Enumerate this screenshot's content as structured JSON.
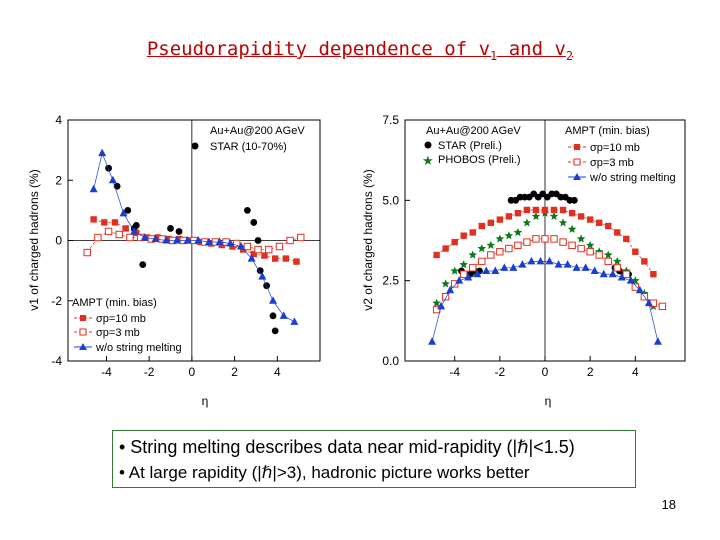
{
  "slide": {
    "title_main": "Pseudorapidity dependence of v",
    "title_sub1": "1",
    "title_and": " and v",
    "title_sub2": "2",
    "bullet1": "• String melting describes data near mid-rapidity (|ℏ|<1.5)",
    "bullet2": "• At large rapidity (|ℏ|>3), hadronic picture works better",
    "page_number": "18"
  },
  "colors": {
    "star": "#000000",
    "sigma10": "#e03020",
    "sigma3": "#e03020",
    "nosm": "#1a3fd0",
    "phobos": "#0a7a1a",
    "title": "#c00000"
  },
  "chart_data": [
    {
      "type": "scatter",
      "id": "v1",
      "xlabel": "η",
      "ylabel": "v1 of charged hadrons (%)",
      "xlim": [
        -5.8,
        6.0
      ],
      "ylim": [
        -4,
        4
      ],
      "xticks": [
        -4,
        -2,
        0,
        2,
        4
      ],
      "yticks": [
        -4,
        -2,
        0,
        2,
        4
      ],
      "ytick_labels": [
        "-4",
        "-2",
        "0",
        "2",
        "4"
      ],
      "legend_top": {
        "system": "Au+Au@200 AGeV",
        "star": "STAR (10-70%)"
      },
      "legend_bottom": {
        "title": "AMPT (min. bias)",
        "s10": "σp=10 mb",
        "s3": "σp=3   mb",
        "nosm": "w/o string melting"
      },
      "series": [
        {
          "name": "STAR (10-70%)",
          "marker": "circle-filled",
          "color": "#000000",
          "x": [
            -3.9,
            -3.5,
            -3.0,
            -2.7,
            -2.6,
            -2.3,
            -1.0,
            -0.85,
            -0.6,
            -0.3,
            2.6,
            2.9,
            3.1,
            3.2,
            3.5,
            3.8,
            3.9
          ],
          "y": [
            2.4,
            1.8,
            1.0,
            0.4,
            0.5,
            -0.8,
            0.4,
            0.0,
            0.3,
            0.0,
            1.0,
            0.6,
            0.0,
            -1.0,
            -1.5,
            -2.5,
            -3.0
          ]
        },
        {
          "name": "σp=10 mb",
          "marker": "square-filled",
          "color": "#e03020",
          "x": [
            -4.6,
            -4.1,
            -3.6,
            -3.1,
            -2.6,
            -2.1,
            -1.6,
            -1.1,
            -0.6,
            -0.1,
            0.4,
            0.9,
            1.4,
            1.9,
            2.4,
            2.9,
            3.4,
            3.9,
            4.4,
            4.9
          ],
          "y": [
            0.7,
            0.6,
            0.6,
            0.4,
            0.25,
            0.1,
            0.1,
            0.05,
            0.05,
            0.0,
            -0.05,
            -0.1,
            -0.15,
            -0.2,
            -0.3,
            -0.45,
            -0.5,
            -0.6,
            -0.6,
            -0.7
          ]
        },
        {
          "name": "σp=3 mb",
          "marker": "square-open",
          "color": "#e03020",
          "x": [
            -4.9,
            -4.4,
            -3.9,
            -3.4,
            -2.9,
            -2.4,
            -1.9,
            -1.4,
            -0.9,
            -0.4,
            0.1,
            0.6,
            1.1,
            1.6,
            2.1,
            2.6,
            3.1,
            3.6,
            4.1,
            4.6,
            5.1
          ],
          "y": [
            -0.4,
            0.1,
            0.3,
            0.2,
            0.1,
            0.1,
            0.05,
            0.05,
            0.0,
            0.0,
            0.0,
            -0.05,
            -0.05,
            -0.05,
            -0.1,
            -0.2,
            -0.3,
            -0.3,
            -0.2,
            0.0,
            0.1
          ]
        },
        {
          "name": "w/o string melting",
          "marker": "triangle-filled",
          "color": "#1a3fd0",
          "x": [
            -4.6,
            -4.2,
            -3.7,
            -3.2,
            -2.7,
            -2.2,
            -1.7,
            -1.2,
            -0.7,
            -0.2,
            0.3,
            0.8,
            1.3,
            1.8,
            2.3,
            2.8,
            3.3,
            3.8,
            4.3,
            4.8
          ],
          "y": [
            1.7,
            2.9,
            2.0,
            0.9,
            0.3,
            0.1,
            0.05,
            0.0,
            0.0,
            0.0,
            0.0,
            -0.05,
            -0.05,
            -0.1,
            -0.2,
            -0.6,
            -1.2,
            -2.0,
            -2.5,
            -2.7
          ]
        }
      ]
    },
    {
      "type": "scatter",
      "id": "v2",
      "xlabel": "η",
      "ylabel": "v2 of charged hadrons (%)",
      "xlim": [
        -6.2,
        6.2
      ],
      "ylim": [
        0,
        7.5
      ],
      "xticks": [
        -4,
        -2,
        0,
        2,
        4
      ],
      "yticks": [
        0,
        2.5,
        5.0,
        7.5
      ],
      "ytick_labels": [
        "0.0",
        "2.5",
        "5.0",
        "7.5"
      ],
      "legend_data": {
        "system": "Au+Au@200 AGeV",
        "star": "STAR (Preli.)",
        "phobos": "PHOBOS (Preli.)"
      },
      "legend_ampt": {
        "title": "AMPT (min. bias)",
        "s10": "σp=10 mb",
        "s3": "σp=3   mb",
        "nosm": "w/o string melting"
      },
      "series": [
        {
          "name": "STAR (Preli.)",
          "marker": "circle-filled",
          "color": "#000000",
          "x": [
            -3.7,
            -3.5,
            -3.3,
            -3.1,
            -2.9,
            -1.5,
            -1.3,
            -1.1,
            -0.9,
            -0.7,
            -0.5,
            -0.3,
            -0.1,
            0.1,
            0.3,
            0.5,
            0.7,
            0.9,
            1.1,
            1.3,
            3.1,
            3.3,
            3.5,
            3.7
          ],
          "y": [
            2.8,
            2.7,
            2.7,
            2.8,
            2.8,
            5.0,
            5.0,
            5.1,
            5.1,
            5.1,
            5.2,
            5.1,
            5.2,
            5.1,
            5.2,
            5.2,
            5.1,
            5.1,
            5.0,
            5.0,
            2.9,
            2.8,
            2.7,
            2.7
          ]
        },
        {
          "name": "PHOBOS (Preli.)",
          "marker": "star",
          "color": "#0a7a1a",
          "x": [
            -4.8,
            -4.4,
            -4.0,
            -3.6,
            -3.2,
            -2.8,
            -2.4,
            -2.0,
            -1.6,
            -1.2,
            -0.8,
            -0.4,
            0.0,
            0.4,
            0.8,
            1.2,
            1.6,
            2.0,
            2.4,
            2.8,
            3.2,
            3.6,
            4.0,
            4.4,
            4.8
          ],
          "y": [
            1.8,
            2.4,
            2.8,
            3.0,
            3.3,
            3.5,
            3.6,
            3.8,
            3.9,
            4.0,
            4.3,
            4.5,
            4.6,
            4.5,
            4.3,
            4.1,
            3.8,
            3.6,
            3.4,
            3.3,
            3.1,
            2.8,
            2.5,
            2.1,
            1.7
          ]
        },
        {
          "name": "σp=10 mb",
          "marker": "square-filled",
          "color": "#e03020",
          "x": [
            -4.8,
            -4.4,
            -4.0,
            -3.6,
            -3.2,
            -2.8,
            -2.4,
            -2.0,
            -1.6,
            -1.2,
            -0.8,
            -0.4,
            0.0,
            0.4,
            0.8,
            1.2,
            1.6,
            2.0,
            2.4,
            2.8,
            3.2,
            3.6,
            4.0,
            4.4,
            4.8
          ],
          "y": [
            3.3,
            3.5,
            3.7,
            3.9,
            4.0,
            4.2,
            4.3,
            4.4,
            4.5,
            4.6,
            4.7,
            4.7,
            4.7,
            4.7,
            4.7,
            4.6,
            4.5,
            4.4,
            4.3,
            4.2,
            4.0,
            3.8,
            3.4,
            3.1,
            2.7
          ]
        },
        {
          "name": "σp=3 mb",
          "marker": "square-open",
          "color": "#e03020",
          "x": [
            -4.8,
            -4.4,
            -4.0,
            -3.6,
            -3.2,
            -2.8,
            -2.4,
            -2.0,
            -1.6,
            -1.2,
            -0.8,
            -0.4,
            0.0,
            0.4,
            0.8,
            1.2,
            1.6,
            2.0,
            2.4,
            2.8,
            3.2,
            3.6,
            4.0,
            4.4,
            4.8,
            5.2
          ],
          "y": [
            1.6,
            2.0,
            2.4,
            2.7,
            2.9,
            3.1,
            3.3,
            3.4,
            3.5,
            3.6,
            3.7,
            3.8,
            3.8,
            3.8,
            3.7,
            3.6,
            3.5,
            3.4,
            3.3,
            3.1,
            2.9,
            2.7,
            2.3,
            2.0,
            1.8,
            1.7
          ]
        },
        {
          "name": "w/o string melting",
          "marker": "triangle-filled",
          "color": "#1a3fd0",
          "x": [
            -5.0,
            -4.6,
            -4.2,
            -3.8,
            -3.4,
            -3.0,
            -2.6,
            -2.2,
            -1.8,
            -1.4,
            -1.0,
            -0.6,
            -0.2,
            0.2,
            0.6,
            1.0,
            1.4,
            1.8,
            2.2,
            2.6,
            3.0,
            3.4,
            3.8,
            4.2,
            4.6,
            5.0
          ],
          "y": [
            0.6,
            1.7,
            2.2,
            2.5,
            2.6,
            2.7,
            2.8,
            2.8,
            2.9,
            2.9,
            3.0,
            3.1,
            3.1,
            3.1,
            3.0,
            3.0,
            2.9,
            2.9,
            2.8,
            2.7,
            2.7,
            2.6,
            2.5,
            2.2,
            1.8,
            0.6
          ]
        }
      ]
    }
  ]
}
